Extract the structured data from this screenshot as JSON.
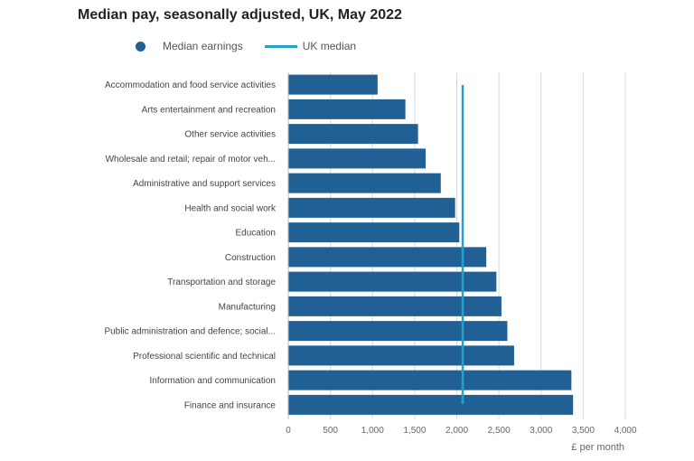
{
  "chart_data": {
    "type": "bar",
    "orientation": "horizontal",
    "title": "Median pay, seasonally adjusted, UK, May 2022",
    "xlabel": "£ per month",
    "ylabel": "",
    "xlim": [
      0,
      4000
    ],
    "ticks": [
      "0",
      "500",
      "1,000",
      "1,500",
      "2,000",
      "2,500",
      "3,000",
      "3,500",
      "4,000"
    ],
    "tick_values": [
      0,
      500,
      1000,
      1500,
      2000,
      2500,
      3000,
      3500,
      4000
    ],
    "grid": true,
    "legend": [
      {
        "label": "Median earnings",
        "color": "#206095",
        "marker": "dot"
      },
      {
        "label": "UK median",
        "color": "#27a0cc",
        "marker": "line"
      }
    ],
    "reference_line": {
      "label": "UK median",
      "value": 2070,
      "color": "#27a0cc"
    },
    "bar_color": "#206095",
    "categories": [
      "Accommodation and food service activities",
      "Arts entertainment and recreation",
      "Other service activities",
      "Wholesale and retail; repair of motor veh...",
      "Administrative and support services",
      "Health and social work",
      "Education",
      "Construction",
      "Transportation and storage",
      "Manufacturing",
      "Public administration and defence; social...",
      "Professional scientific and technical",
      "Information and communication",
      "Finance and insurance"
    ],
    "values": [
      1060,
      1390,
      1540,
      1630,
      1810,
      1980,
      2030,
      2350,
      2470,
      2530,
      2600,
      2680,
      3360,
      3380
    ]
  }
}
